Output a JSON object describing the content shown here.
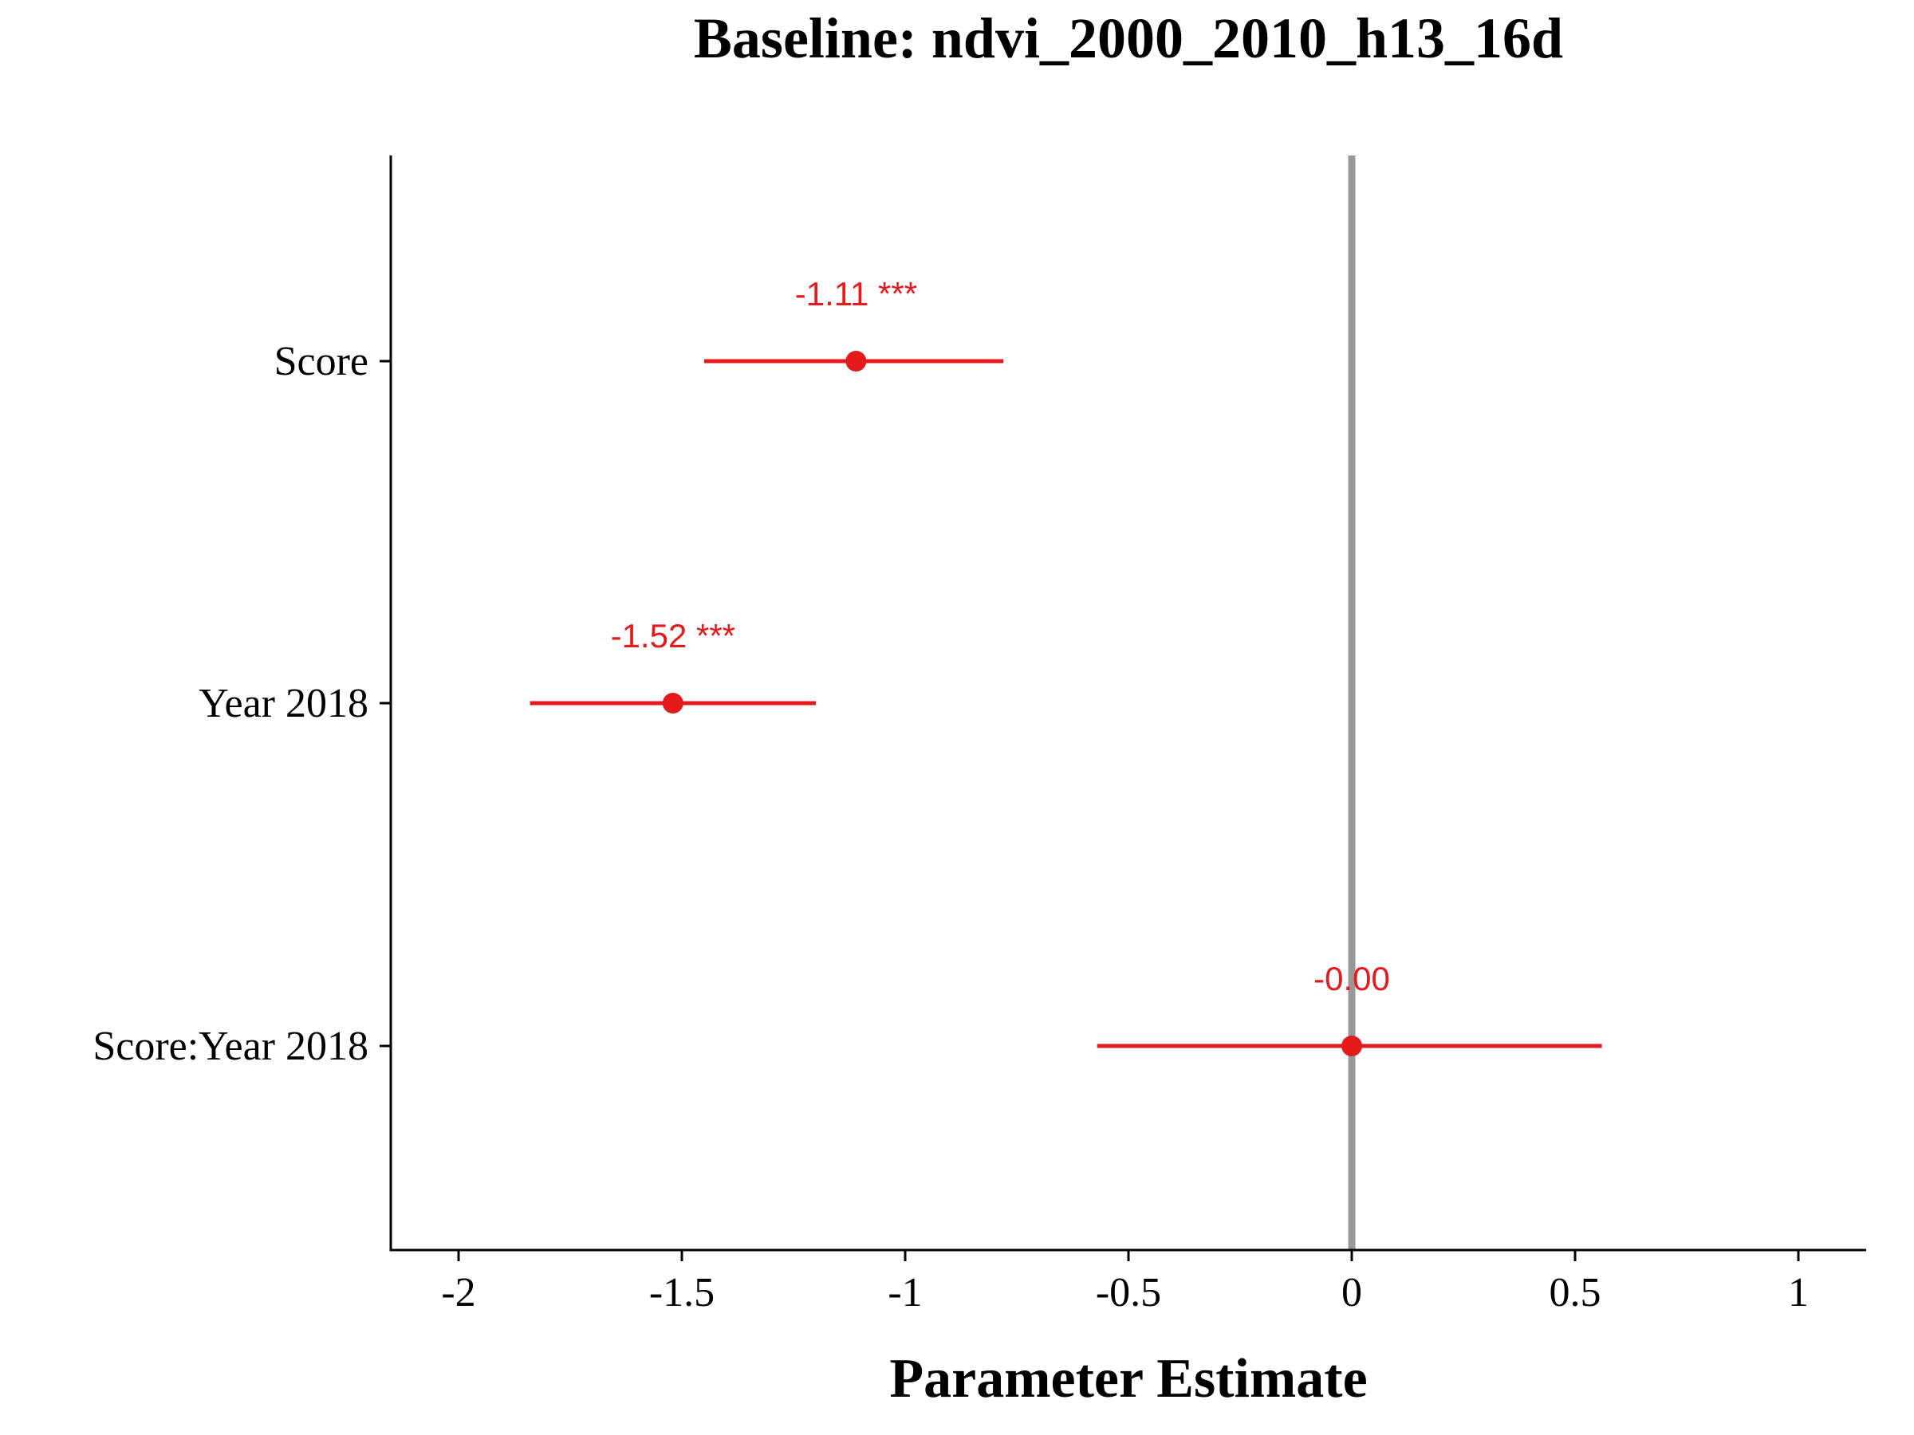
{
  "chart_data": {
    "type": "scatter",
    "subtype": "forest-plot",
    "title": "Baseline: ndvi_2000_2010_h13_16d",
    "xlabel": "Parameter Estimate",
    "ylabel": "",
    "xlim": [
      -2.15,
      1.15
    ],
    "x_ticks": [
      -2,
      -1.5,
      -1,
      -0.5,
      0,
      0.5,
      1
    ],
    "x_tick_labels": [
      "-2",
      "-1.5",
      "-1",
      "-0.5",
      "0",
      "0.5",
      "1"
    ],
    "categories": [
      "Score",
      "Year 2018",
      "Score:Year 2018"
    ],
    "estimates": [
      -1.11,
      -1.52,
      0.0
    ],
    "ci_lower": [
      -1.45,
      -1.84,
      -0.57
    ],
    "ci_upper": [
      -0.78,
      -1.2,
      0.56
    ],
    "data_labels": [
      "-1.11 ***",
      "-1.52 ***",
      "-0.00"
    ],
    "reference_line": 0,
    "grid": false,
    "legend": "none",
    "colors": {
      "points": "#e41a1c",
      "reference_line": "#999999",
      "axis": "#000000"
    }
  }
}
